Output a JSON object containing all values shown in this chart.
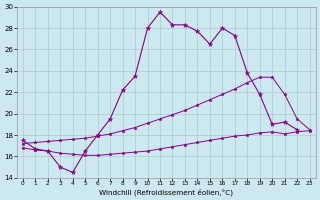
{
  "xlabel": "Windchill (Refroidissement éolien,°C)",
  "background_color": "#cce8f0",
  "grid_color": "#aacccc",
  "line_color": "#880088",
  "xlim": [
    -0.5,
    23.5
  ],
  "ylim": [
    14,
    30
  ],
  "xticks": [
    0,
    1,
    2,
    3,
    4,
    5,
    6,
    7,
    8,
    9,
    10,
    11,
    12,
    13,
    14,
    15,
    16,
    17,
    18,
    19,
    20,
    21,
    22,
    23
  ],
  "yticks": [
    14,
    16,
    18,
    20,
    22,
    24,
    26,
    28,
    30
  ],
  "line1_x": [
    0,
    1,
    2,
    3,
    4,
    5,
    6,
    7,
    8,
    9,
    10,
    11,
    12,
    13,
    14,
    15,
    16,
    17,
    18,
    19,
    20,
    21,
    22
  ],
  "line1_y": [
    17.5,
    16.7,
    16.5,
    15.0,
    14.5,
    16.5,
    18.0,
    19.5,
    22.2,
    23.5,
    28.0,
    29.5,
    28.3,
    28.3,
    27.7,
    26.5,
    28.0,
    27.3,
    23.8,
    21.8,
    19.0,
    19.2,
    18.5
  ],
  "line2_x": [
    0,
    1,
    2,
    3,
    4,
    5,
    6,
    7,
    8,
    9,
    10,
    11,
    12,
    13,
    14,
    15,
    16,
    17,
    18,
    19,
    20,
    21,
    22,
    23
  ],
  "line2_y": [
    17.2,
    17.3,
    17.4,
    17.5,
    17.6,
    17.7,
    17.9,
    18.1,
    18.4,
    18.7,
    19.1,
    19.5,
    19.9,
    20.3,
    20.8,
    21.3,
    21.8,
    22.3,
    22.9,
    23.4,
    23.4,
    21.8,
    19.5,
    18.5
  ],
  "line3_x": [
    0,
    1,
    2,
    3,
    4,
    5,
    6,
    7,
    8,
    9,
    10,
    11,
    12,
    13,
    14,
    15,
    16,
    17,
    18,
    19,
    20,
    21,
    22,
    23
  ],
  "line3_y": [
    16.8,
    16.6,
    16.5,
    16.3,
    16.2,
    16.1,
    16.1,
    16.2,
    16.3,
    16.4,
    16.5,
    16.7,
    16.9,
    17.1,
    17.3,
    17.5,
    17.7,
    17.9,
    18.0,
    18.2,
    18.3,
    18.1,
    18.3,
    18.4
  ]
}
